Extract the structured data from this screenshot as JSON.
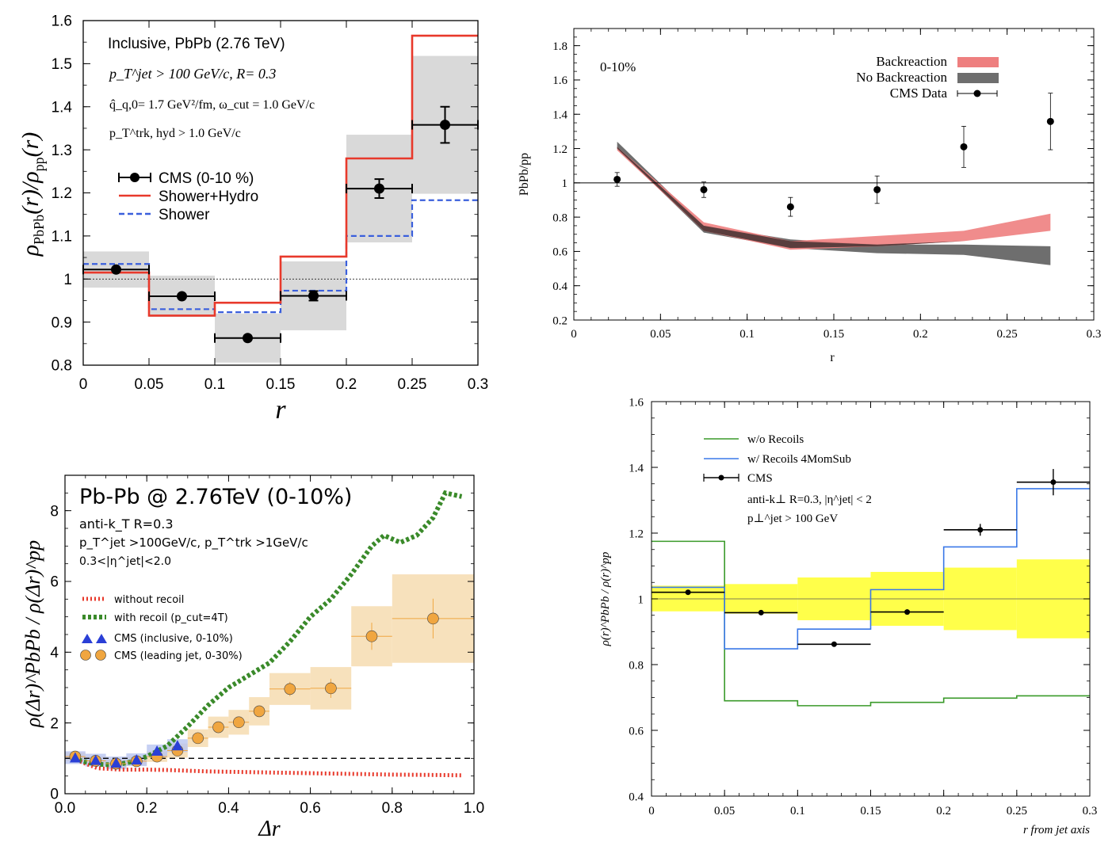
{
  "chart_data": [
    {
      "id": "tl",
      "type": "step",
      "xlim": [
        0,
        0.3
      ],
      "ylim": [
        0.8,
        1.6
      ],
      "xticks": [
        0,
        0.05,
        0.1,
        0.15,
        0.2,
        0.25,
        0.3
      ],
      "xtick_labels": [
        "0",
        "0.05",
        "0.1",
        "0.15",
        "0.2",
        "0.25",
        "0.3"
      ],
      "yticks": [
        0.8,
        0.9,
        1,
        1.1,
        1.2,
        1.3,
        1.4,
        1.5,
        1.6
      ],
      "ytick_labels": [
        "0.8",
        "0.9",
        "1",
        "1.1",
        "1.2",
        "1.3",
        "1.4",
        "1.5",
        "1.6"
      ],
      "xlabel": "r",
      "ylabel_main": "ρ",
      "ylabel_sub1": "PbPb",
      "ylabel_mid": "(r)/ρ",
      "ylabel_sub2": "pp",
      "ylabel_end": "(r)",
      "annotations": {
        "line1": "Inclusive, PbPb (2.76 TeV)",
        "line2": "p_T^jet > 100 GeV/c, R= 0.3",
        "line3": "q̂_q,0= 1.7 GeV²/fm, ω_cut = 1.0 GeV/c",
        "line4": "p_T^trk, hyd > 1.0 GeV/c"
      },
      "legend": [
        "CMS (0-10 %)",
        "Shower+Hydro",
        "Shower"
      ],
      "bins": [
        0,
        0.05,
        0.1,
        0.15,
        0.2,
        0.25,
        0.3
      ],
      "shower_hydro": [
        1.015,
        0.915,
        0.945,
        1.052,
        1.28,
        1.565
      ],
      "shower": [
        1.035,
        0.93,
        0.923,
        0.973,
        1.1,
        1.183
      ],
      "cms": [
        {
          "x": 0.025,
          "y": 1.022,
          "err": 0.006,
          "sys": 0.042
        },
        {
          "x": 0.075,
          "y": 0.96,
          "err": 0.008,
          "sys": 0.048
        },
        {
          "x": 0.125,
          "y": 0.863,
          "err": 0.007,
          "sys": 0.057
        },
        {
          "x": 0.175,
          "y": 0.961,
          "err": 0.011,
          "sys": 0.08
        },
        {
          "x": 0.225,
          "y": 1.21,
          "err": 0.022,
          "sys": 0.125
        },
        {
          "x": 0.275,
          "y": 1.358,
          "err": 0.042,
          "sys": 0.16
        }
      ],
      "reference_line": 1
    },
    {
      "id": "tr",
      "type": "band",
      "xlim": [
        0,
        0.3
      ],
      "ylim": [
        0.2,
        1.9
      ],
      "xticks": [
        0,
        0.05,
        0.1,
        0.15,
        0.2,
        0.25,
        0.3
      ],
      "xtick_labels": [
        "0",
        "0.05",
        "0.1",
        "0.15",
        "0.2",
        "0.25",
        "0.3"
      ],
      "yticks": [
        0.2,
        0.4,
        0.6,
        0.8,
        1,
        1.2,
        1.4,
        1.6,
        1.8
      ],
      "ytick_labels": [
        "0.2",
        "0.4",
        "0.6",
        "0.8",
        "1",
        "1.2",
        "1.4",
        "1.6",
        "1.8"
      ],
      "xlabel": "r",
      "ylabel": "PbPb/pp",
      "centrality": "0-10%",
      "legend": [
        "Backreaction",
        "No Backreaction",
        "CMS Data"
      ],
      "band_x": [
        0.025,
        0.075,
        0.125,
        0.175,
        0.225,
        0.275
      ],
      "backreaction_lo": [
        1.19,
        0.72,
        0.61,
        0.63,
        0.66,
        0.72
      ],
      "backreaction_hi": [
        1.21,
        0.77,
        0.66,
        0.69,
        0.72,
        0.82
      ],
      "no_backreaction_lo": [
        1.2,
        0.71,
        0.62,
        0.59,
        0.58,
        0.52
      ],
      "no_backreaction_hi": [
        1.24,
        0.75,
        0.67,
        0.64,
        0.64,
        0.63
      ],
      "cms": [
        {
          "x": 0.025,
          "y": 1.02,
          "err": 0.04
        },
        {
          "x": 0.075,
          "y": 0.96,
          "err": 0.045
        },
        {
          "x": 0.125,
          "y": 0.86,
          "err": 0.055
        },
        {
          "x": 0.175,
          "y": 0.96,
          "err": 0.08
        },
        {
          "x": 0.225,
          "y": 1.21,
          "err": 0.12
        },
        {
          "x": 0.275,
          "y": 1.358,
          "err": 0.165
        }
      ],
      "reference_line": 1
    },
    {
      "id": "bl",
      "type": "scatter",
      "xlim": [
        0,
        1.0
      ],
      "ylim": [
        0,
        9
      ],
      "xticks": [
        0,
        0.2,
        0.4,
        0.6,
        0.8,
        1.0
      ],
      "xtick_labels": [
        "0.0",
        "0.2",
        "0.4",
        "0.6",
        "0.8",
        "1.0"
      ],
      "yticks": [
        0,
        2,
        4,
        6,
        8
      ],
      "ytick_labels": [
        "0",
        "2",
        "4",
        "6",
        "8"
      ],
      "xlabel": "Δr",
      "ylabel": "ρ(Δr)^PbPb / ρ(Δr)^pp",
      "title": "Pb-Pb @ 2.76TeV (0-10%)",
      "annotations": {
        "line1": "anti-k_T R=0.3",
        "line2": "p_T^jet >100GeV/c, p_T^trk >1GeV/c",
        "line3": "0.3<|η^jet|<2.0"
      },
      "legend": [
        "without recoil",
        "with recoil (p_cut=4T)",
        "CMS (inclusive, 0-10%)",
        "CMS (leading jet, 0-30%)"
      ],
      "without_recoil": {
        "x": [
          0.02,
          0.05,
          0.08,
          0.11,
          0.14,
          0.17,
          0.2,
          0.25,
          0.3,
          0.35,
          0.4,
          0.5,
          0.6,
          0.7,
          0.8,
          0.9,
          0.97
        ],
        "y": [
          1.0,
          0.85,
          0.72,
          0.7,
          0.68,
          0.68,
          0.68,
          0.67,
          0.65,
          0.63,
          0.62,
          0.6,
          0.58,
          0.56,
          0.54,
          0.53,
          0.52
        ]
      },
      "with_recoil": {
        "x": [
          0.02,
          0.05,
          0.08,
          0.11,
          0.14,
          0.17,
          0.2,
          0.25,
          0.3,
          0.35,
          0.4,
          0.45,
          0.5,
          0.55,
          0.6,
          0.65,
          0.7,
          0.75,
          0.78,
          0.82,
          0.86,
          0.9,
          0.93,
          0.97
        ],
        "y": [
          1.0,
          0.9,
          0.83,
          0.82,
          0.85,
          0.92,
          1.05,
          1.35,
          1.9,
          2.5,
          3.0,
          3.35,
          3.7,
          4.3,
          5.0,
          5.5,
          6.2,
          7.0,
          7.3,
          7.1,
          7.3,
          7.8,
          8.5,
          8.4
        ]
      },
      "cms_inclusive": [
        {
          "x": 0.025,
          "y": 1.02
        },
        {
          "x": 0.075,
          "y": 0.95
        },
        {
          "x": 0.125,
          "y": 0.87
        },
        {
          "x": 0.175,
          "y": 0.96
        },
        {
          "x": 0.225,
          "y": 1.21
        },
        {
          "x": 0.275,
          "y": 1.36
        }
      ],
      "cms_leading": [
        {
          "x": 0.025,
          "y": 1.05,
          "w": 0.025,
          "sys": 0.12
        },
        {
          "x": 0.075,
          "y": 0.93,
          "w": 0.025,
          "sys": 0.12
        },
        {
          "x": 0.125,
          "y": 0.85,
          "w": 0.025,
          "sys": 0.12
        },
        {
          "x": 0.175,
          "y": 0.92,
          "w": 0.025,
          "sys": 0.12
        },
        {
          "x": 0.225,
          "y": 1.05,
          "w": 0.025,
          "sys": 0.15
        },
        {
          "x": 0.275,
          "y": 1.22,
          "w": 0.025,
          "sys": 0.2
        },
        {
          "x": 0.325,
          "y": 1.57,
          "w": 0.025,
          "sys": 0.25
        },
        {
          "x": 0.375,
          "y": 1.88,
          "w": 0.025,
          "sys": 0.3
        },
        {
          "x": 0.425,
          "y": 2.02,
          "w": 0.025,
          "sys": 0.35
        },
        {
          "x": 0.475,
          "y": 2.33,
          "w": 0.025,
          "sys": 0.4
        },
        {
          "x": 0.55,
          "y": 2.96,
          "w": 0.05,
          "sys": 0.45
        },
        {
          "x": 0.65,
          "y": 2.98,
          "w": 0.05,
          "sys": 0.6
        },
        {
          "x": 0.75,
          "y": 4.45,
          "w": 0.05,
          "sys": 0.85
        },
        {
          "x": 0.9,
          "y": 4.95,
          "w": 0.1,
          "sys": 1.25
        }
      ],
      "reference_line": 1
    },
    {
      "id": "br",
      "type": "step",
      "xlim": [
        0,
        0.3
      ],
      "ylim": [
        0.4,
        1.6
      ],
      "xticks": [
        0,
        0.05,
        0.1,
        0.15,
        0.2,
        0.25,
        0.3
      ],
      "xtick_labels": [
        "0",
        "0.05",
        "0.1",
        "0.15",
        "0.2",
        "0.25",
        "0.3"
      ],
      "yticks": [
        0.4,
        0.6,
        0.8,
        1,
        1.2,
        1.4,
        1.6
      ],
      "ytick_labels": [
        "0.4",
        "0.6",
        "0.8",
        "1",
        "1.2",
        "1.4",
        "1.6"
      ],
      "xlabel": "r from jet axis",
      "ylabel": "ρ(r)^PbPb / ρ(r)^pp",
      "annotations": {
        "line1": "anti-k⊥ R=0.3, |η^jet| < 2",
        "line2": "p⊥^jet > 100 GeV"
      },
      "legend": [
        "w/o Recoils",
        "w/ Recoils 4MomSub",
        "CMS"
      ],
      "bins": [
        0,
        0.05,
        0.1,
        0.15,
        0.2,
        0.25,
        0.3
      ],
      "wo_recoils": [
        1.175,
        0.69,
        0.675,
        0.685,
        0.698,
        0.705
      ],
      "w_recoils": [
        1.035,
        0.848,
        0.908,
        1.028,
        1.158,
        1.335
      ],
      "yellow_band_lo": [
        0.962,
        0.955,
        0.935,
        0.918,
        0.905,
        0.88
      ],
      "yellow_band_hi": [
        1.04,
        1.045,
        1.065,
        1.082,
        1.095,
        1.12
      ],
      "cms": [
        {
          "x": 0.025,
          "y": 1.02,
          "err": 0.005
        },
        {
          "x": 0.075,
          "y": 0.958,
          "err": 0.005
        },
        {
          "x": 0.125,
          "y": 0.862,
          "err": 0.005
        },
        {
          "x": 0.175,
          "y": 0.96,
          "err": 0.008
        },
        {
          "x": 0.225,
          "y": 1.21,
          "err": 0.018
        },
        {
          "x": 0.275,
          "y": 1.355,
          "err": 0.04
        }
      ],
      "reference_line": 1
    }
  ],
  "colors": {
    "red": "#e8392b",
    "blue_dash": "#3a5fdc",
    "gray_band": "#d9d9d9",
    "back_pink": "#ee7f7f",
    "noback_gray": "#6e6e6e",
    "dark_overlap": "#5a3d3d",
    "green_dot": "#3a8a2a",
    "red_dot": "#e8392b",
    "orange": "#f0a640",
    "orange_band": "#f6dcb0",
    "tri_blue": "#2a3fd6",
    "tri_band": "#b8c4f0",
    "green_line": "#3a9a2a",
    "blue_line": "#3a78e8",
    "yellow": "#ffff4a"
  }
}
